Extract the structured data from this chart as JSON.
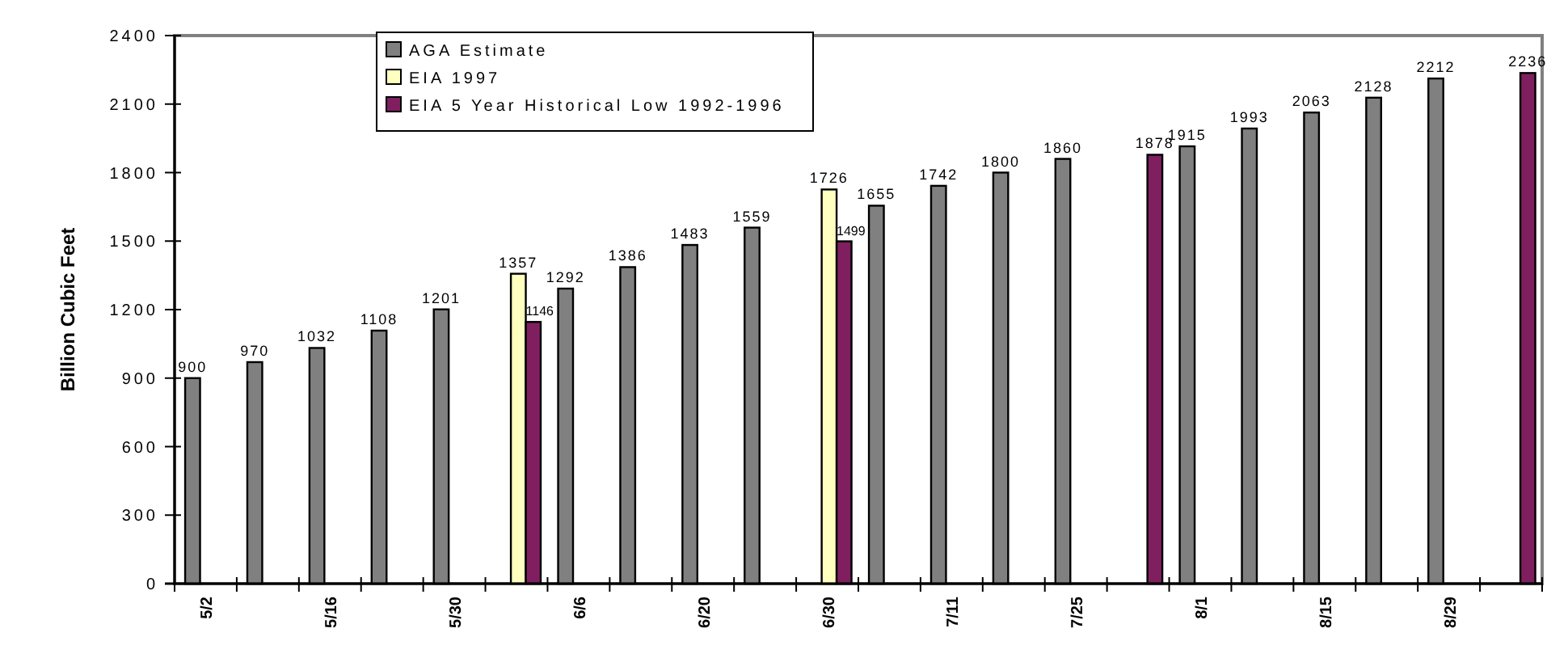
{
  "chart_data": {
    "type": "bar",
    "ylabel": "Billion Cubic Feet",
    "categories": [
      "5/2",
      null,
      "5/16",
      null,
      "5/30",
      null,
      "6/6",
      null,
      "6/20",
      null,
      "6/30",
      null,
      "7/11",
      null,
      "7/25",
      null,
      "8/1",
      null,
      "8/15",
      null,
      "8/29",
      null
    ],
    "series": [
      {
        "name": "AGA Estimate",
        "color": "#808080",
        "values": [
          900,
          970,
          1032,
          1108,
          1201,
          null,
          1292,
          1386,
          1483,
          1559,
          null,
          1655,
          1742,
          1800,
          1860,
          null,
          1915,
          1993,
          2063,
          2128,
          2212,
          null
        ]
      },
      {
        "name": "EIA 1997",
        "color": "#ffffc0",
        "values": [
          null,
          null,
          null,
          null,
          null,
          1357,
          null,
          null,
          null,
          null,
          1726,
          null,
          null,
          null,
          null,
          null,
          null,
          null,
          null,
          null,
          null,
          null
        ]
      },
      {
        "name": "EIA 5 Year Historical Low 1992-1996",
        "color": "#7f1f5f",
        "values": [
          null,
          null,
          null,
          null,
          null,
          1146,
          null,
          null,
          null,
          null,
          1499,
          null,
          null,
          null,
          null,
          1878,
          null,
          null,
          null,
          null,
          null,
          2236
        ]
      }
    ],
    "ylim": [
      0,
      2400
    ],
    "yticks": [
      0,
      300,
      600,
      900,
      1200,
      1500,
      1800,
      2100,
      2400
    ],
    "grid": false,
    "legend": "top",
    "data_labels": true
  }
}
